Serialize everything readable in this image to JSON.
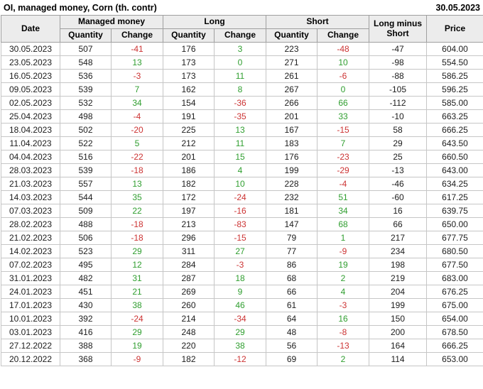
{
  "page": {
    "title": "OI, managed money, Corn (th. contr)",
    "report_date": "30.05.2023"
  },
  "colors": {
    "positive_change": "#2f9e2f",
    "negative_change": "#cc3333",
    "header_bg": "#ececec"
  },
  "chart_data": {
    "type": "table",
    "title": "OI, managed money, Corn (th. contr)",
    "header": {
      "date": "Date",
      "groups": [
        {
          "label": "Managed money",
          "sub": [
            "Quantity",
            "Change"
          ]
        },
        {
          "label": "Long",
          "sub": [
            "Quantity",
            "Change"
          ]
        },
        {
          "label": "Short",
          "sub": [
            "Quantity",
            "Change"
          ]
        }
      ],
      "long_minus_short": "Long minus Short",
      "price": "Price"
    },
    "row_format": [
      "date",
      "managed_money_quantity",
      "managed_money_change",
      "long_quantity",
      "long_change",
      "short_quantity",
      "short_change",
      "long_minus_short",
      "price"
    ],
    "rows": [
      [
        "30.05.2023",
        507,
        -41,
        176,
        3,
        223,
        -48,
        -47,
        "604.00"
      ],
      [
        "23.05.2023",
        548,
        13,
        173,
        0,
        271,
        10,
        -98,
        "554.50"
      ],
      [
        "16.05.2023",
        536,
        -3,
        173,
        11,
        261,
        -6,
        -88,
        "586.25"
      ],
      [
        "09.05.2023",
        539,
        7,
        162,
        8,
        267,
        0,
        -105,
        "596.25"
      ],
      [
        "02.05.2023",
        532,
        34,
        154,
        -36,
        266,
        66,
        -112,
        "585.00"
      ],
      [
        "25.04.2023",
        498,
        -4,
        191,
        -35,
        201,
        33,
        -10,
        "663.25"
      ],
      [
        "18.04.2023",
        502,
        -20,
        225,
        13,
        167,
        -15,
        58,
        "666.25"
      ],
      [
        "11.04.2023",
        522,
        5,
        212,
        11,
        183,
        7,
        29,
        "643.50"
      ],
      [
        "04.04.2023",
        516,
        -22,
        201,
        15,
        176,
        -23,
        25,
        "660.50"
      ],
      [
        "28.03.2023",
        539,
        -18,
        186,
        4,
        199,
        -29,
        -13,
        "643.00"
      ],
      [
        "21.03.2023",
        557,
        13,
        182,
        10,
        228,
        -4,
        -46,
        "634.25"
      ],
      [
        "14.03.2023",
        544,
        35,
        172,
        -24,
        232,
        51,
        -60,
        "617.25"
      ],
      [
        "07.03.2023",
        509,
        22,
        197,
        -16,
        181,
        34,
        16,
        "639.75"
      ],
      [
        "28.02.2023",
        488,
        -18,
        213,
        -83,
        147,
        68,
        66,
        "650.00"
      ],
      [
        "21.02.2023",
        506,
        -18,
        296,
        -15,
        79,
        1,
        217,
        "677.75"
      ],
      [
        "14.02.2023",
        523,
        29,
        311,
        27,
        77,
        -9,
        234,
        "680.50"
      ],
      [
        "07.02.2023",
        495,
        12,
        284,
        -3,
        86,
        19,
        198,
        "677.50"
      ],
      [
        "31.01.2023",
        482,
        31,
        287,
        18,
        68,
        2,
        219,
        "683.00"
      ],
      [
        "24.01.2023",
        451,
        21,
        269,
        9,
        66,
        4,
        204,
        "676.25"
      ],
      [
        "17.01.2023",
        430,
        38,
        260,
        46,
        61,
        -3,
        199,
        "675.00"
      ],
      [
        "10.01.2023",
        392,
        -24,
        214,
        -34,
        64,
        16,
        150,
        "654.00"
      ],
      [
        "03.01.2023",
        416,
        29,
        248,
        29,
        48,
        -8,
        200,
        "678.50"
      ],
      [
        "27.12.2022",
        388,
        19,
        220,
        38,
        56,
        -13,
        164,
        "666.25"
      ],
      [
        "20.12.2022",
        368,
        -9,
        182,
        -12,
        69,
        2,
        114,
        "653.00"
      ]
    ]
  }
}
